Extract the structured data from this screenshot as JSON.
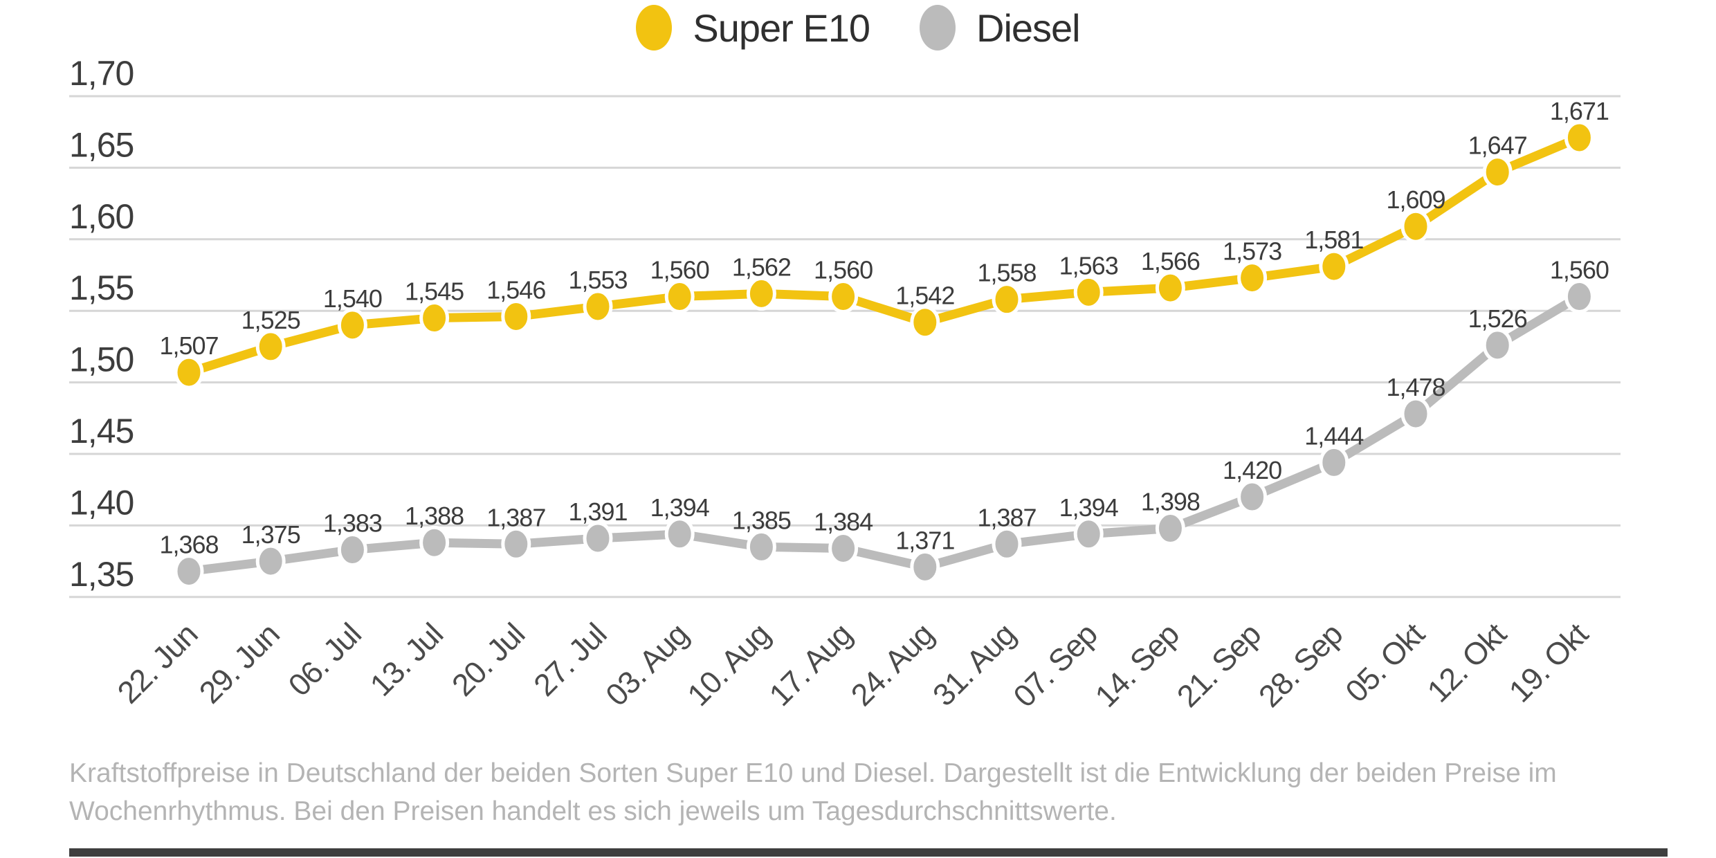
{
  "caption": {
    "lines": [
      "Kraftstoffpreise in Deutschland der beiden Sorten Super E10 und Diesel. Dargestellt ist die Entwicklung der beiden Preise im",
      "Wochenrhythmus. Bei den Preisen handelt es sich jeweils um Tagesdurchschnittswerte."
    ]
  },
  "chart_data": {
    "type": "line",
    "legend_position": "top",
    "grid": true,
    "categories": [
      "22. Jun",
      "29. Jun",
      "06. Jul",
      "13. Jul",
      "20. Jul",
      "27. Jul",
      "03. Aug",
      "10. Aug",
      "17. Aug",
      "24. Aug",
      "31. Aug",
      "07. Sep",
      "14. Sep",
      "21. Sep",
      "28. Sep",
      "05. Okt",
      "12. Okt",
      "19. Okt"
    ],
    "series": [
      {
        "name": "Super E10",
        "color": "#F2C311",
        "values": [
          1.507,
          1.525,
          1.54,
          1.545,
          1.546,
          1.553,
          1.56,
          1.562,
          1.56,
          1.542,
          1.558,
          1.563,
          1.566,
          1.573,
          1.581,
          1.609,
          1.647,
          1.671
        ],
        "labels": [
          "1,507",
          "1,525",
          "1,540",
          "1,545",
          "1,546",
          "1,553",
          "1,560",
          "1,562",
          "1,560",
          "1,542",
          "1,558",
          "1,563",
          "1,566",
          "1,573",
          "1,581",
          "1,609",
          "1,647",
          "1,671"
        ]
      },
      {
        "name": "Diesel",
        "color": "#BBBBBB",
        "values": [
          1.368,
          1.375,
          1.383,
          1.388,
          1.387,
          1.391,
          1.394,
          1.385,
          1.384,
          1.371,
          1.387,
          1.394,
          1.398,
          1.42,
          1.444,
          1.478,
          1.526,
          1.56
        ],
        "labels": [
          "1,368",
          "1,375",
          "1,383",
          "1,388",
          "1,387",
          "1,391",
          "1,394",
          "1,385",
          "1,384",
          "1,371",
          "1,387",
          "1,394",
          "1,398",
          "1,420",
          "1,444",
          "1,478",
          "1,526",
          "1,560"
        ]
      }
    ],
    "ylim": [
      1.35,
      1.7
    ],
    "ytick_labels": [
      "1,70",
      "1,65",
      "1,60",
      "1,55",
      "1,50",
      "1,45",
      "1,40",
      "1,35"
    ],
    "ytick_values": [
      1.7,
      1.65,
      1.6,
      1.55,
      1.5,
      1.45,
      1.4,
      1.35
    ],
    "xlabel": "",
    "ylabel": ""
  }
}
